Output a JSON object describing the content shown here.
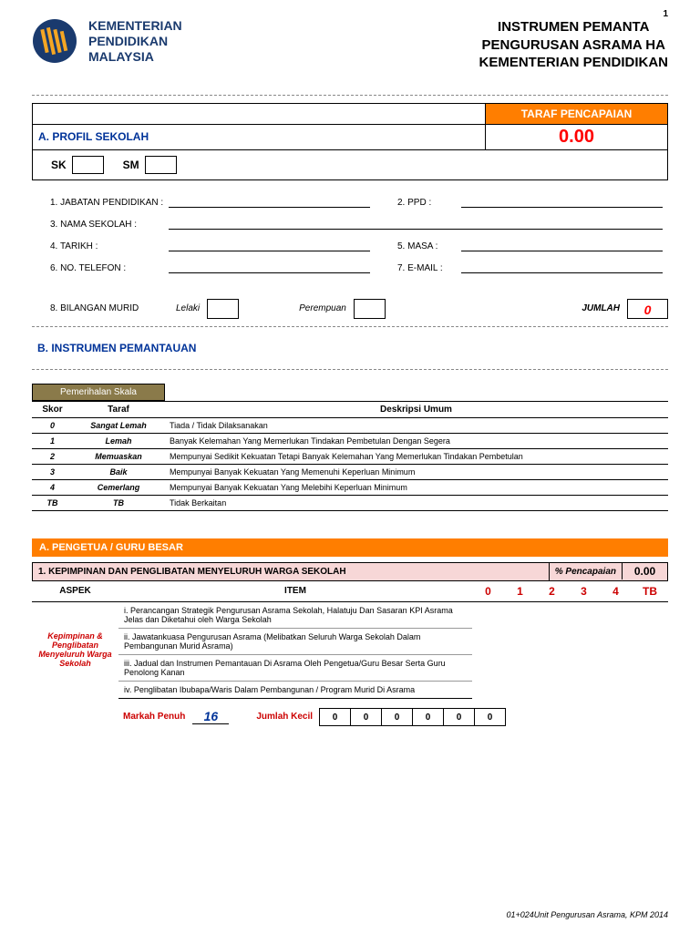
{
  "page_number": "1",
  "ministry": {
    "line1": "KEMENTERIAN",
    "line2": "PENDIDIKAN",
    "line3": "MALAYSIA"
  },
  "title": {
    "line1": "INSTRUMEN PEMANTA",
    "line2": "PENGURUSAN ASRAMA  HA",
    "line3": "KEMENTERIAN PENDIDIKAN"
  },
  "taraf": {
    "label": "TARAF PENCAPAIAN",
    "value": "0.00"
  },
  "section_a": {
    "title": "A.  PROFIL SEKOLAH",
    "sk": "SK",
    "sm": "SM",
    "fields": {
      "f1": "1.  JABATAN PENDIDIKAN :",
      "f2": "2.  PPD  :",
      "f3": "3.  NAMA SEKOLAH   :",
      "f4": "4.  TARIKH  :",
      "f5": "5.  MASA  :",
      "f6": "6.  NO. TELEFON   :",
      "f7": "7.  E-MAIL  :",
      "f8": "8.  BILANGAN MURID",
      "lelaki": "Lelaki",
      "perempuan": "Perempuan",
      "jumlah": "JUMLAH",
      "jumlah_val": "0"
    }
  },
  "section_b": {
    "title": "B.  INSTRUMEN PEMANTAUAN"
  },
  "scale": {
    "header": "Pemerihalan Skala",
    "cols": {
      "skor": "Skor",
      "taraf": "Taraf",
      "desc": "Deskripsi Umum"
    },
    "rows": [
      {
        "skor": "0",
        "taraf": "Sangat Lemah",
        "desc": "Tiada / Tidak Dilaksanakan"
      },
      {
        "skor": "1",
        "taraf": "Lemah",
        "desc": "Banyak Kelemahan Yang Memerlukan Tindakan Pembetulan Dengan Segera"
      },
      {
        "skor": "2",
        "taraf": "Memuaskan",
        "desc": "Mempunyai Sedikit Kekuatan Tetapi Banyak Kelemahan Yang Memerlukan Tindakan Pembetulan"
      },
      {
        "skor": "3",
        "taraf": "Baik",
        "desc": "Mempunyai Banyak Kekuatan Yang Memenuhi Keperluan Minimum"
      },
      {
        "skor": "4",
        "taraf": "Cemerlang",
        "desc": "Mempunyai Banyak Kekuatan Yang Melebihi Keperluan Minimum"
      },
      {
        "skor": "TB",
        "taraf": "TB",
        "desc": "Tidak Berkaitan"
      }
    ]
  },
  "pengetua": {
    "bar": "A.  PENGETUA / GURU BESAR",
    "sub": "1.  KEPIMPINAN DAN PENGLIBATAN MENYELURUH WARGA SEKOLAH",
    "pencapaian_lbl": "% Pencapaian",
    "pencapaian_val": "0.00",
    "cols": {
      "aspek": "ASPEK",
      "item": "ITEM",
      "s0": "0",
      "s1": "1",
      "s2": "2",
      "s3": "3",
      "s4": "4",
      "tb": "TB"
    },
    "aspek": "Kepimpinan & Penglibatan Menyeluruh Warga Sekolah",
    "items": [
      "i.  Perancangan Strategik Pengurusan Asrama Sekolah, Halatuju Dan Sasaran KPI Asrama Jelas dan Diketahui oleh Warga Sekolah",
      "ii.  Jawatankuasa Pengurusan Asrama (Melibatkan Seluruh Warga Sekolah Dalam Pembangunan Murid Asrama)",
      "iii.  Jadual dan Instrumen Pemantauan Di Asrama Oleh Pengetua/Guru Besar Serta Guru Penolong Kanan",
      "iv.  Penglibatan Ibubapa/Waris Dalam Pembangunan / Program Murid Di Asrama"
    ],
    "markah_penuh_lbl": "Markah Penuh",
    "markah_penuh_val": "16",
    "jumlah_kecil_lbl": "Jumlah Kecil",
    "jk": [
      "0",
      "0",
      "0",
      "0",
      "0",
      "0"
    ]
  },
  "footer": "01+024Unit Pengurusan Asrama, KPM 2014",
  "colors": {
    "orange": "#ff7e00",
    "blue": "#003399",
    "red": "#ff0000",
    "brown": "#8a7a4a",
    "pink": "#f7d7d7",
    "navy": "#1a3a6e"
  }
}
